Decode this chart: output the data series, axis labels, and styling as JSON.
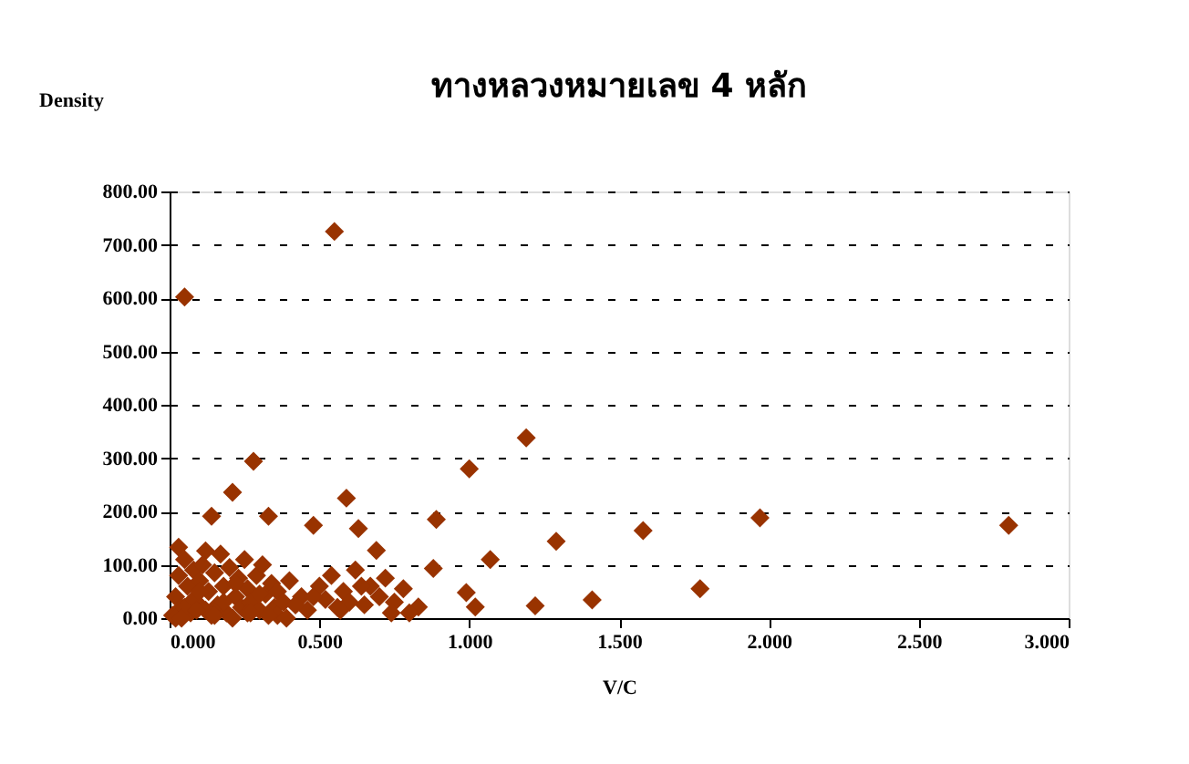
{
  "chart_data": {
    "type": "scatter",
    "title": "ทางหลวงหมายเลข 4 หลัก",
    "xlabel": "V/C",
    "ylabel": "Density",
    "x": [
      0.05,
      0.55,
      0.28,
      0.21,
      0.14,
      1.0,
      1.19,
      0.59,
      0.89,
      1.58,
      1.29,
      1.07,
      0.88,
      0.63,
      0.48,
      0.33,
      0.69,
      0.99,
      1.02,
      1.22,
      1.41,
      0.83,
      0.03,
      0.12,
      1.77,
      1.97,
      2.8,
      0.01,
      0.02,
      0.03,
      0.04,
      0.05,
      0.06,
      0.07,
      0.08,
      0.09,
      0.1,
      0.11,
      0.12,
      0.13,
      0.15,
      0.16,
      0.17,
      0.18,
      0.19,
      0.2,
      0.22,
      0.23,
      0.24,
      0.25,
      0.26,
      0.27,
      0.29,
      0.3,
      0.31,
      0.32,
      0.34,
      0.35,
      0.36,
      0.38,
      0.4,
      0.42,
      0.44,
      0.46,
      0.5,
      0.52,
      0.54,
      0.56,
      0.58,
      0.6,
      0.62,
      0.65,
      0.67,
      0.7,
      0.72,
      0.75,
      0.78,
      0.8,
      0.02,
      0.05,
      0.08,
      0.1,
      0.14,
      0.18,
      0.22,
      0.26,
      0.3,
      0.36,
      0.42,
      0.48,
      0.57,
      0.64,
      0.74,
      0.04,
      0.09,
      0.15,
      0.21,
      0.27,
      0.33,
      0.39
    ],
    "values": [
      602,
      725,
      294,
      236,
      191,
      280,
      338,
      225,
      185,
      164,
      144,
      110,
      93,
      168,
      174,
      191,
      127,
      48,
      21,
      23,
      34,
      21,
      133,
      126,
      55,
      188,
      174,
      5,
      40,
      80,
      20,
      110,
      60,
      10,
      90,
      30,
      70,
      100,
      15,
      50,
      85,
      25,
      120,
      60,
      10,
      95,
      40,
      75,
      20,
      110,
      55,
      30,
      80,
      15,
      100,
      45,
      65,
      20,
      50,
      30,
      70,
      25,
      40,
      15,
      60,
      35,
      80,
      20,
      50,
      30,
      90,
      25,
      60,
      40,
      75,
      30,
      55,
      10,
      0,
      20,
      35,
      50,
      5,
      30,
      65,
      10,
      45,
      5,
      25,
      40,
      15,
      60,
      10,
      0,
      15,
      5,
      0,
      10,
      5,
      0
    ],
    "color": "#993300",
    "marker": "diamond",
    "xlim": [
      0,
      3
    ],
    "xticks": [
      {
        "value": 0,
        "label": "0.000"
      },
      {
        "value": 0.5,
        "label": "0.500"
      },
      {
        "value": 1,
        "label": "1.000"
      },
      {
        "value": 1.5,
        "label": "1.500"
      },
      {
        "value": 2,
        "label": "2.000"
      },
      {
        "value": 2.5,
        "label": "2.500"
      },
      {
        "value": 3,
        "label": "3.000"
      }
    ],
    "ylim": [
      0,
      800
    ],
    "yticks": [
      {
        "value": 0,
        "label": "0.00"
      },
      {
        "value": 100,
        "label": "100.00"
      },
      {
        "value": 200,
        "label": "200.00"
      },
      {
        "value": 300,
        "label": "300.00"
      },
      {
        "value": 400,
        "label": "400.00"
      },
      {
        "value": 500,
        "label": "500.00"
      },
      {
        "value": 600,
        "label": "600.00"
      },
      {
        "value": 700,
        "label": "700.00"
      },
      {
        "value": 800,
        "label": "800.00"
      }
    ],
    "grid": "y"
  }
}
